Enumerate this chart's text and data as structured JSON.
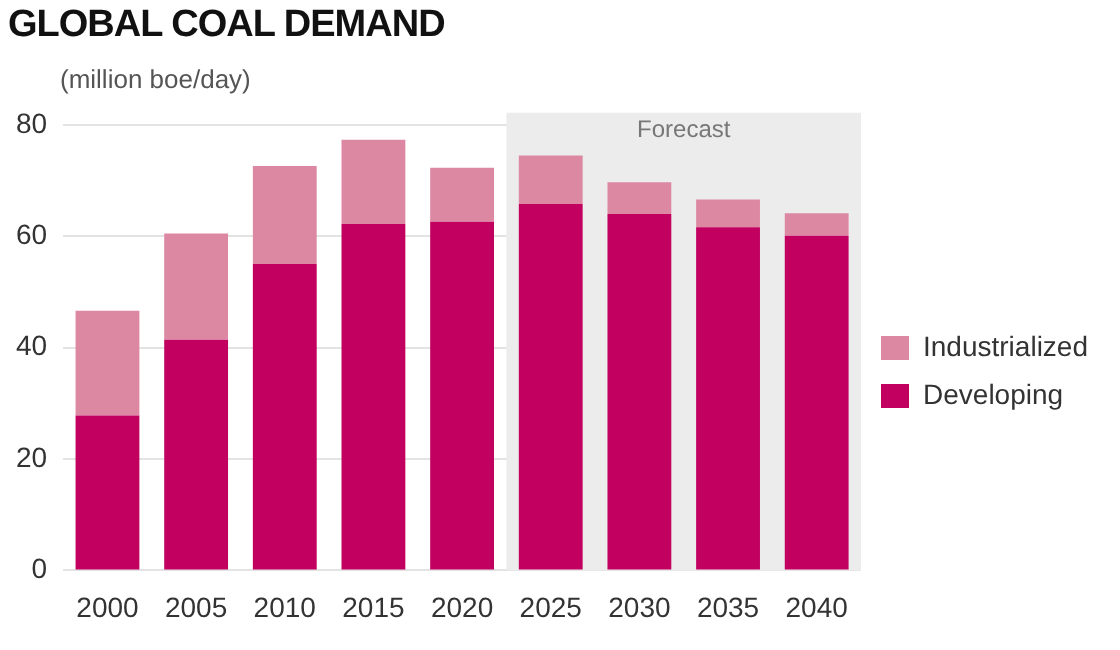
{
  "chart_data": {
    "type": "bar",
    "title": "GLOBAL COAL DEMAND",
    "ylabel": "(million boe/day)",
    "categories": [
      "2000",
      "2005",
      "2010",
      "2015",
      "2020",
      "2025",
      "2030",
      "2035",
      "2040"
    ],
    "series": [
      {
        "name": "Developing",
        "color": "#c2005f",
        "values": [
          27.8,
          41.4,
          55.0,
          62.2,
          62.6,
          65.8,
          64.0,
          61.6,
          60.1
        ]
      },
      {
        "name": "Industrialized",
        "color": "#dd88a3",
        "values": [
          18.8,
          19.1,
          17.6,
          15.1,
          9.7,
          8.7,
          5.7,
          5.0,
          4.0
        ]
      }
    ],
    "stacked": true,
    "ylim": [
      0,
      80
    ],
    "yticks": [
      0,
      20,
      40,
      60,
      80
    ],
    "grid": "y",
    "legend": "right",
    "bands": [
      {
        "axis": "x",
        "from": "2025",
        "to": "2040",
        "label": "Forecast",
        "color": "#ececec"
      }
    ]
  }
}
